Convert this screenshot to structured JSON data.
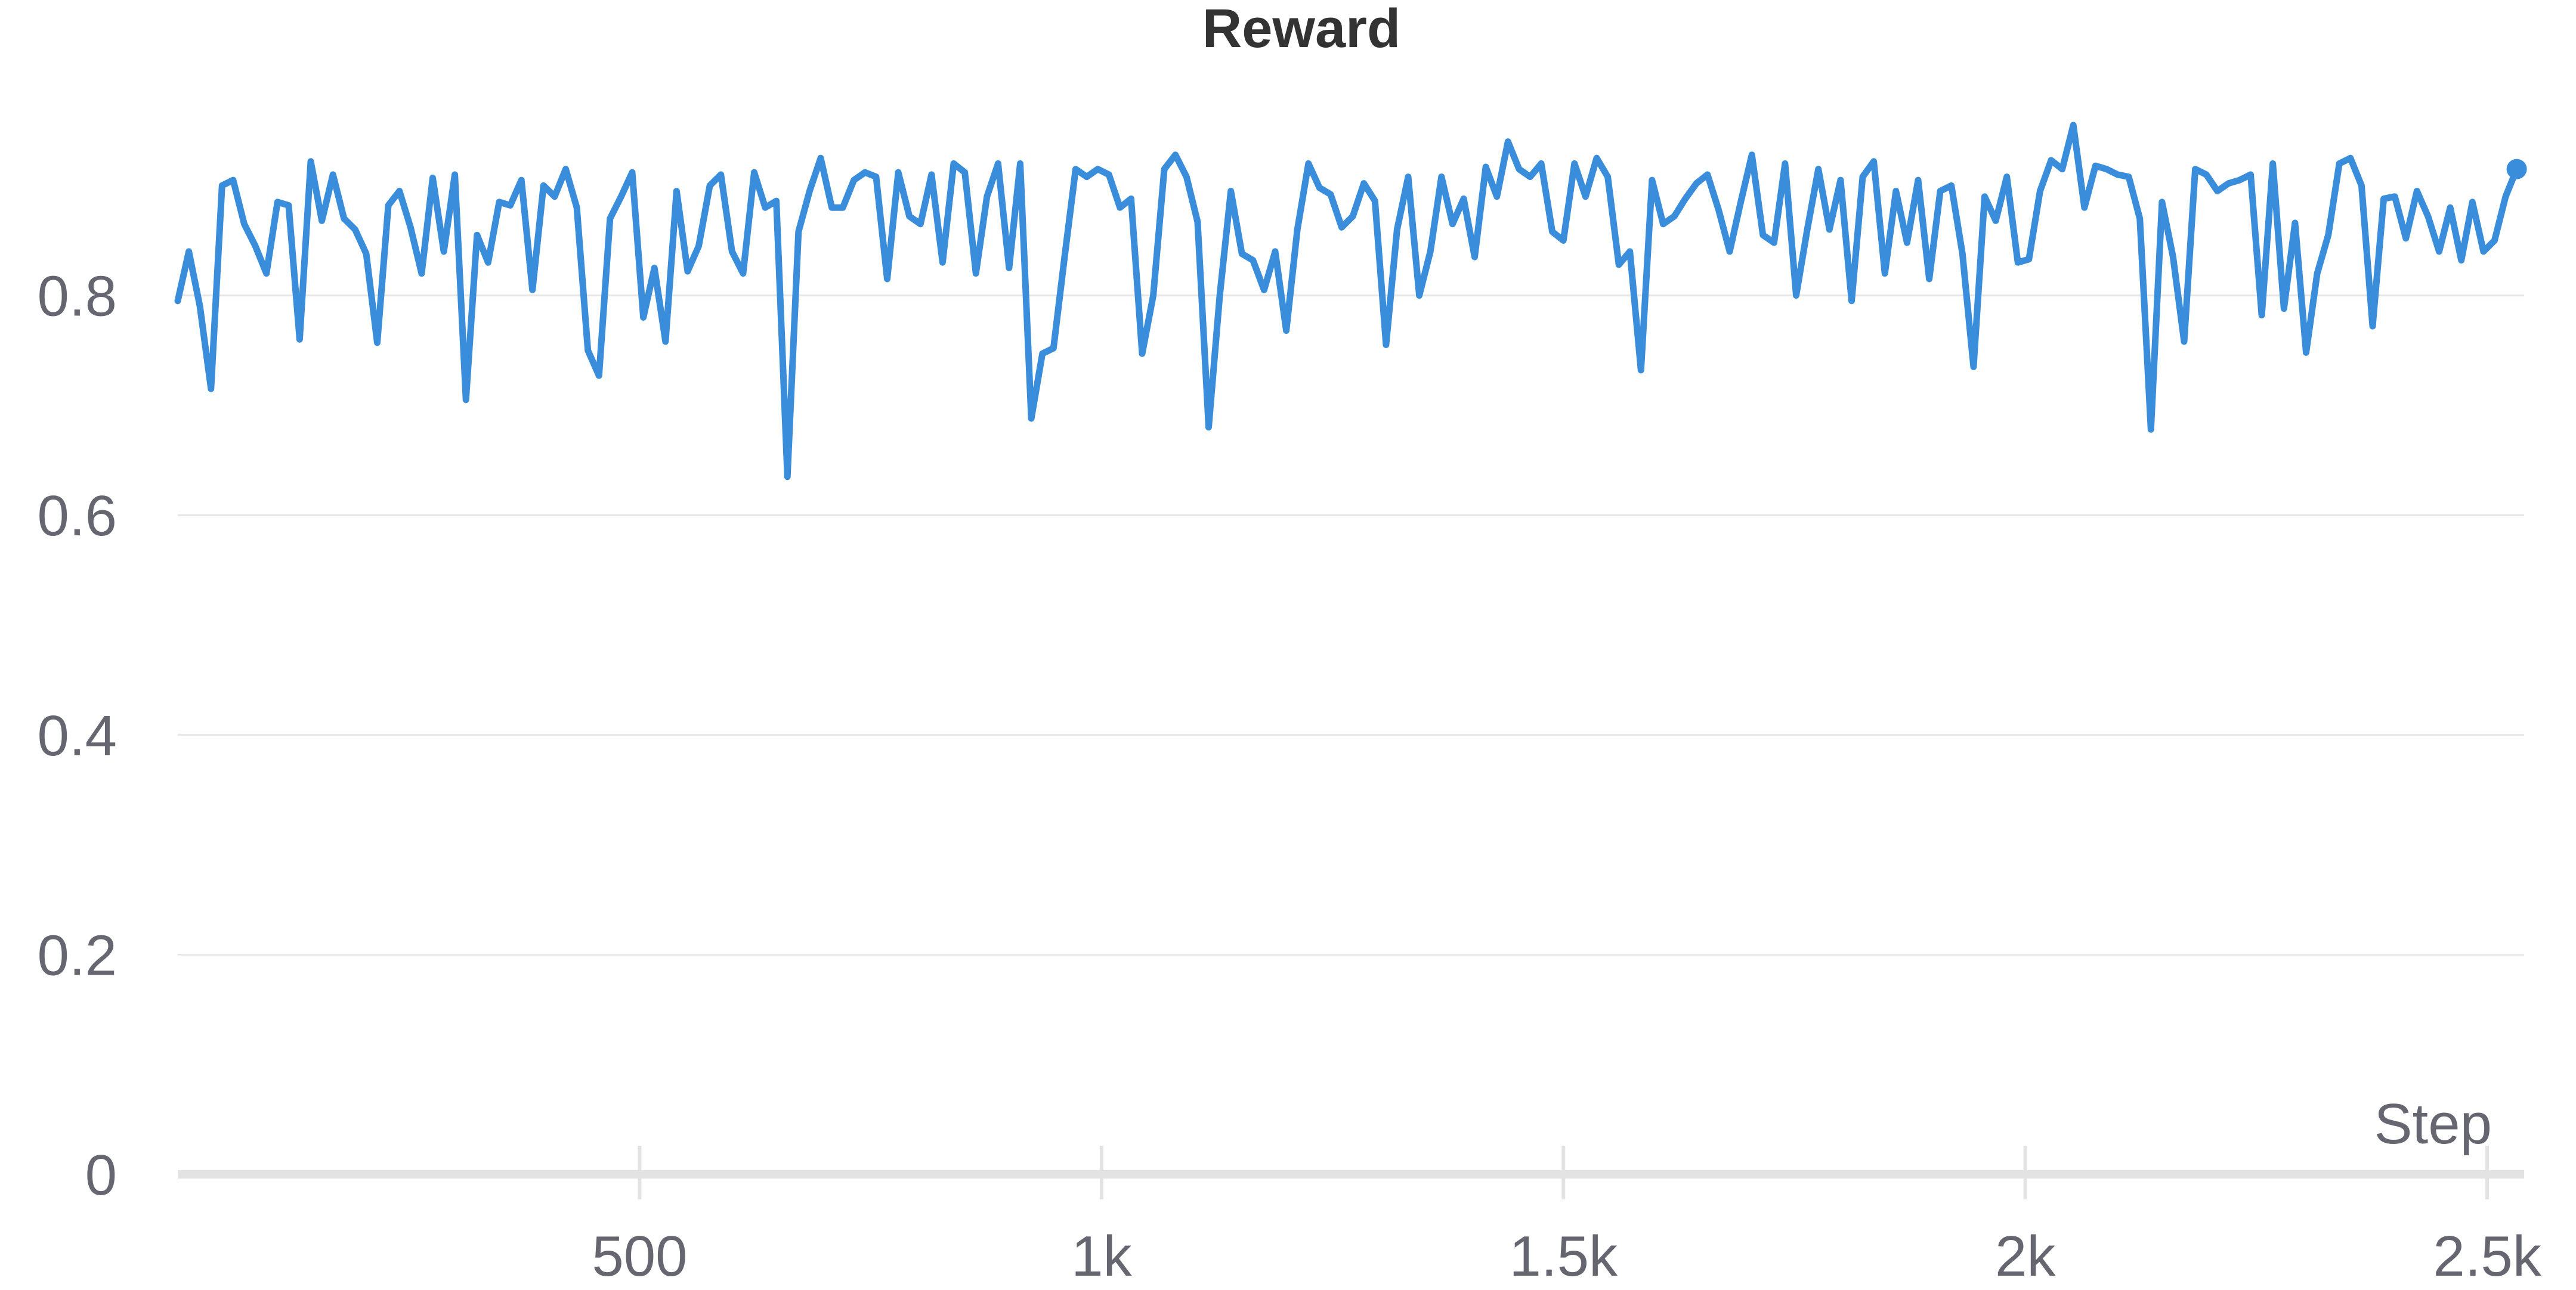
{
  "chart_data": {
    "type": "line",
    "title": "Reward",
    "xlabel": "Step",
    "ylabel": "",
    "xlim": [
      0,
      2540
    ],
    "ylim": [
      0,
      1.0
    ],
    "grid": true,
    "legend": "none",
    "colors": {
      "series": "#3a8ddb",
      "grid": "#e6e6e6",
      "axis": "#e3e3e3",
      "text": "#666670",
      "title": "#333333"
    },
    "x_ticks": [
      {
        "value": 500,
        "label": "500"
      },
      {
        "value": 1000,
        "label": "1k"
      },
      {
        "value": 1500,
        "label": "1.5k"
      },
      {
        "value": 2000,
        "label": "2k"
      },
      {
        "value": 2500,
        "label": "2.5k"
      }
    ],
    "y_ticks": [
      {
        "value": 0,
        "label": "0"
      },
      {
        "value": 0.2,
        "label": "0.2"
      },
      {
        "value": 0.4,
        "label": "0.4"
      },
      {
        "value": 0.6,
        "label": "0.6"
      },
      {
        "value": 0.8,
        "label": "0.8"
      }
    ],
    "series": [
      {
        "x": [
          0,
          12,
          24,
          36,
          48,
          60,
          72,
          84,
          96,
          108,
          120,
          132,
          144,
          156,
          168,
          180,
          192,
          204,
          216,
          228,
          240,
          252,
          264,
          276,
          288,
          300,
          312,
          324,
          336,
          348,
          360,
          372,
          384,
          396,
          408,
          420,
          432,
          444,
          456,
          468,
          480,
          492,
          504,
          516,
          528,
          540,
          552,
          564,
          576,
          588,
          600,
          612,
          624,
          636,
          648,
          660,
          672,
          684,
          696,
          708,
          720,
          732,
          744,
          756,
          768,
          780,
          792,
          804,
          816,
          828,
          840,
          852,
          864,
          876,
          888,
          900,
          912,
          924,
          936,
          948,
          960,
          972,
          984,
          996,
          1008,
          1020,
          1032,
          1044,
          1056,
          1068,
          1080,
          1092,
          1104,
          1116,
          1128,
          1140,
          1152,
          1164,
          1176,
          1188,
          1200,
          1212,
          1224,
          1236,
          1248,
          1260,
          1272,
          1284,
          1296,
          1308,
          1320,
          1332,
          1344,
          1356,
          1368,
          1380,
          1392,
          1404,
          1416,
          1428,
          1440,
          1452,
          1464,
          1476,
          1488,
          1500,
          1512,
          1524,
          1536,
          1548,
          1560,
          1572,
          1584,
          1596,
          1608,
          1620,
          1632,
          1644,
          1656,
          1668,
          1680,
          1692,
          1704,
          1716,
          1728,
          1740,
          1752,
          1764,
          1776,
          1788,
          1800,
          1812,
          1824,
          1836,
          1848,
          1860,
          1872,
          1884,
          1896,
          1908,
          1920,
          1932,
          1944,
          1956,
          1968,
          1980,
          1992,
          2004,
          2016,
          2028,
          2040,
          2052,
          2064,
          2076,
          2088,
          2100,
          2112,
          2124,
          2136,
          2148,
          2160,
          2172,
          2184,
          2196,
          2208,
          2220,
          2232,
          2244,
          2256,
          2268,
          2280,
          2292,
          2304,
          2316,
          2328,
          2340,
          2352,
          2364,
          2376,
          2388,
          2400,
          2412,
          2424,
          2436,
          2448,
          2460,
          2472,
          2484,
          2496,
          2508,
          2520,
          2532
        ],
        "y": [
          0.795,
          0.84,
          0.79,
          0.715,
          0.9,
          0.905,
          0.865,
          0.845,
          0.82,
          0.885,
          0.882,
          0.76,
          0.922,
          0.868,
          0.91,
          0.87,
          0.86,
          0.838,
          0.757,
          0.882,
          0.895,
          0.862,
          0.82,
          0.907,
          0.84,
          0.91,
          0.705,
          0.855,
          0.83,
          0.885,
          0.882,
          0.905,
          0.805,
          0.9,
          0.89,
          0.915,
          0.88,
          0.75,
          0.727,
          0.87,
          0.89,
          0.912,
          0.78,
          0.825,
          0.758,
          0.895,
          0.822,
          0.845,
          0.9,
          0.91,
          0.84,
          0.82,
          0.912,
          0.88,
          0.886,
          0.635,
          0.858,
          0.895,
          0.925,
          0.88,
          0.88,
          0.905,
          0.912,
          0.908,
          0.815,
          0.912,
          0.872,
          0.865,
          0.91,
          0.83,
          0.92,
          0.912,
          0.82,
          0.89,
          0.92,
          0.825,
          0.92,
          0.688,
          0.747,
          0.752,
          0.835,
          0.915,
          0.908,
          0.915,
          0.91,
          0.88,
          0.888,
          0.747,
          0.8,
          0.915,
          0.928,
          0.908,
          0.867,
          0.68,
          0.8,
          0.895,
          0.838,
          0.832,
          0.805,
          0.84,
          0.768,
          0.86,
          0.92,
          0.898,
          0.892,
          0.862,
          0.872,
          0.902,
          0.886,
          0.755,
          0.86,
          0.908,
          0.8,
          0.84,
          0.908,
          0.865,
          0.888,
          0.835,
          0.917,
          0.89,
          0.94,
          0.915,
          0.908,
          0.92,
          0.858,
          0.85,
          0.92,
          0.89,
          0.925,
          0.908,
          0.828,
          0.84,
          0.732,
          0.905,
          0.865,
          0.872,
          0.888,
          0.902,
          0.91,
          0.878,
          0.84,
          0.885,
          0.928,
          0.855,
          0.848,
          0.92,
          0.8,
          0.86,
          0.915,
          0.86,
          0.905,
          0.795,
          0.908,
          0.922,
          0.82,
          0.895,
          0.848,
          0.905,
          0.815,
          0.895,
          0.9,
          0.838,
          0.735,
          0.89,
          0.868,
          0.908,
          0.83,
          0.833,
          0.895,
          0.923,
          0.915,
          0.955,
          0.88,
          0.918,
          0.915,
          0.91,
          0.908,
          0.87,
          0.678,
          0.885,
          0.835,
          0.758,
          0.915,
          0.91,
          0.895,
          0.902,
          0.905,
          0.91,
          0.782,
          0.92,
          0.788,
          0.866,
          0.748,
          0.82,
          0.855,
          0.92,
          0.925,
          0.9,
          0.772,
          0.888,
          0.89,
          0.852,
          0.895,
          0.872,
          0.84,
          0.88,
          0.832,
          0.885,
          0.84,
          0.85,
          0.89,
          0.915
        ]
      }
    ]
  }
}
